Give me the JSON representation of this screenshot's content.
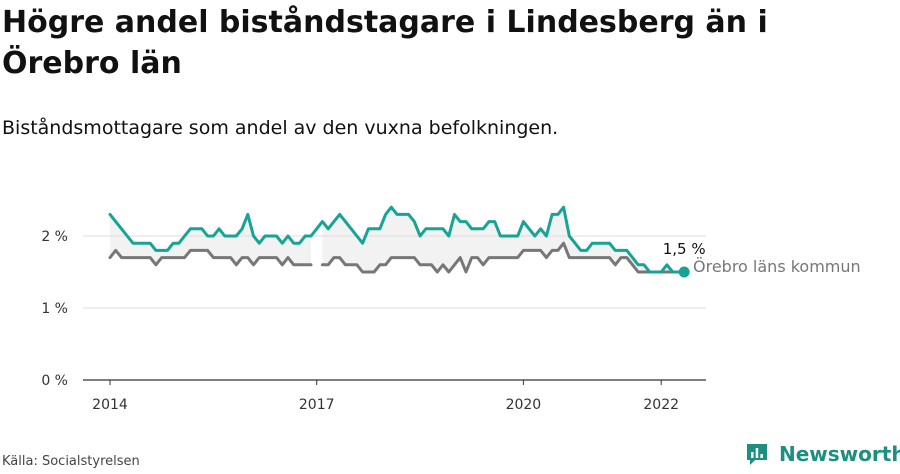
{
  "title": "Högre andel biståndstagare i Lindesberg än i Örebro län",
  "subtitle": "Biståndsmottagare som andel av den vuxna befolkningen.",
  "source": "Källa: Socialstyrelsen",
  "brand": "Newsworthy",
  "colors": {
    "lindesberg": "#17a396",
    "orebro": "#777777",
    "axis": "#333333",
    "grid": "#dddddd",
    "band": "#f2f2f2"
  },
  "chart_data": {
    "type": "line",
    "x_start_year": 2014,
    "step": "month",
    "x_ticks": [
      {
        "year": 2014,
        "label": "2014"
      },
      {
        "year": 2017,
        "label": "2017"
      },
      {
        "year": 2020,
        "label": "2020"
      },
      {
        "year": 2022,
        "label": "2022"
      }
    ],
    "y_ticks": [
      {
        "value": 0,
        "label": "0 %"
      },
      {
        "value": 1,
        "label": "1 %"
      },
      {
        "value": 2,
        "label": "2 %"
      }
    ],
    "ylim": [
      0,
      2.5
    ],
    "end_label": "1,5 %",
    "series": [
      {
        "name": "",
        "values": [
          2.3,
          2.2,
          2.1,
          2.0,
          1.9,
          1.9,
          1.9,
          1.9,
          1.8,
          1.8,
          1.8,
          1.9,
          1.9,
          2.0,
          2.1,
          2.1,
          2.1,
          2.0,
          2.0,
          2.1,
          2.0,
          2.0,
          2.0,
          2.1,
          2.3,
          2.0,
          1.9,
          2.0,
          2.0,
          2.0,
          1.9,
          2.0,
          1.9,
          1.9,
          2.0,
          2.0,
          2.1,
          2.2,
          2.1,
          2.2,
          2.3,
          2.2,
          2.1,
          2.0,
          1.9,
          2.1,
          2.1,
          2.1,
          2.3,
          2.4,
          2.3,
          2.3,
          2.3,
          2.2,
          2.0,
          2.1,
          2.1,
          2.1,
          2.1,
          2.0,
          2.3,
          2.2,
          2.2,
          2.1,
          2.1,
          2.1,
          2.2,
          2.2,
          2.0,
          2.0,
          2.0,
          2.0,
          2.2,
          2.1,
          2.0,
          2.1,
          2.0,
          2.3,
          2.3,
          2.4,
          2.0,
          1.9,
          1.8,
          1.8,
          1.9,
          1.9,
          1.9,
          1.9,
          1.8,
          1.8,
          1.8,
          1.7,
          1.6,
          1.6,
          1.5,
          1.5,
          1.5,
          1.6,
          1.5,
          1.5,
          1.5
        ]
      },
      {
        "name": "Örebro läns kommun",
        "values": [
          1.7,
          1.8,
          1.7,
          1.7,
          1.7,
          1.7,
          1.7,
          1.7,
          1.6,
          1.7,
          1.7,
          1.7,
          1.7,
          1.7,
          1.8,
          1.8,
          1.8,
          1.8,
          1.7,
          1.7,
          1.7,
          1.7,
          1.6,
          1.7,
          1.7,
          1.6,
          1.7,
          1.7,
          1.7,
          1.7,
          1.6,
          1.7,
          1.6,
          1.6,
          1.6,
          1.6,
          null,
          1.6,
          1.6,
          1.7,
          1.7,
          1.6,
          1.6,
          1.6,
          1.5,
          1.5,
          1.5,
          1.6,
          1.6,
          1.7,
          1.7,
          1.7,
          1.7,
          1.7,
          1.6,
          1.6,
          1.6,
          1.5,
          1.6,
          1.5,
          1.6,
          1.7,
          1.5,
          1.7,
          1.7,
          1.6,
          1.7,
          1.7,
          1.7,
          1.7,
          1.7,
          1.7,
          1.8,
          1.8,
          1.8,
          1.8,
          1.7,
          1.8,
          1.8,
          1.9,
          1.7,
          1.7,
          1.7,
          1.7,
          1.7,
          1.7,
          1.7,
          1.7,
          1.6,
          1.7,
          1.7,
          1.6,
          1.5,
          1.5,
          1.5,
          1.5,
          1.5,
          1.5,
          1.5,
          1.5,
          1.5
        ]
      }
    ]
  }
}
